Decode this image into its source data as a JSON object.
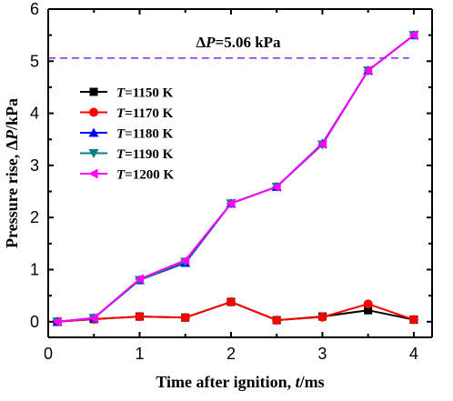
{
  "chart_data": {
    "type": "line",
    "xlabel": "Time after ignition, t/ms",
    "ylabel": "Pressure rise, ΔP/kPa",
    "xlim": [
      0,
      4.2
    ],
    "ylim": [
      -0.3,
      6
    ],
    "xticks": [
      0,
      1,
      2,
      3,
      4
    ],
    "yticks": [
      0,
      1,
      2,
      3,
      4,
      5,
      6
    ],
    "grid": false,
    "legend_position": "center-left",
    "reference_line": {
      "y": 5.06,
      "label": "ΔP=5.06 kPa",
      "color": "#8b2be2",
      "style": "dashed"
    },
    "series": [
      {
        "name": "T=1150 K",
        "color": "#000000",
        "marker": "square",
        "x": [
          0.1,
          0.5,
          1.0,
          1.5,
          2.0,
          2.5,
          3.0,
          3.5,
          4.0
        ],
        "y": [
          0.0,
          0.05,
          0.1,
          0.08,
          0.38,
          0.03,
          0.1,
          0.22,
          0.04
        ]
      },
      {
        "name": "T=1170 K",
        "color": "#ff0000",
        "marker": "circle",
        "x": [
          0.1,
          0.5,
          1.0,
          1.5,
          2.0,
          2.5,
          3.0,
          3.5,
          4.0
        ],
        "y": [
          0.0,
          0.05,
          0.1,
          0.08,
          0.38,
          0.03,
          0.09,
          0.34,
          0.04
        ]
      },
      {
        "name": "T=1180 K",
        "color": "#0000ff",
        "marker": "triangle-up",
        "x": [
          0.1,
          0.5,
          1.0,
          1.5,
          2.0,
          2.5,
          3.0,
          3.5,
          4.0
        ],
        "y": [
          0.0,
          0.07,
          0.8,
          1.13,
          2.27,
          2.59,
          3.42,
          4.82,
          5.5
        ]
      },
      {
        "name": "T=1190 K",
        "color": "#008080",
        "marker": "triangle-down",
        "x": [
          0.1,
          0.5,
          1.0,
          1.5,
          2.0,
          2.5,
          3.0,
          3.5,
          4.0
        ],
        "y": [
          0.0,
          0.07,
          0.8,
          1.15,
          2.27,
          2.59,
          3.4,
          4.82,
          5.5
        ]
      },
      {
        "name": "T=1200 K",
        "color": "#ff00ff",
        "marker": "triangle-left",
        "x": [
          0.1,
          0.5,
          1.0,
          1.5,
          2.0,
          2.5,
          3.0,
          3.5,
          4.0
        ],
        "y": [
          0.0,
          0.07,
          0.82,
          1.18,
          2.27,
          2.59,
          3.41,
          4.82,
          5.5
        ]
      }
    ]
  }
}
